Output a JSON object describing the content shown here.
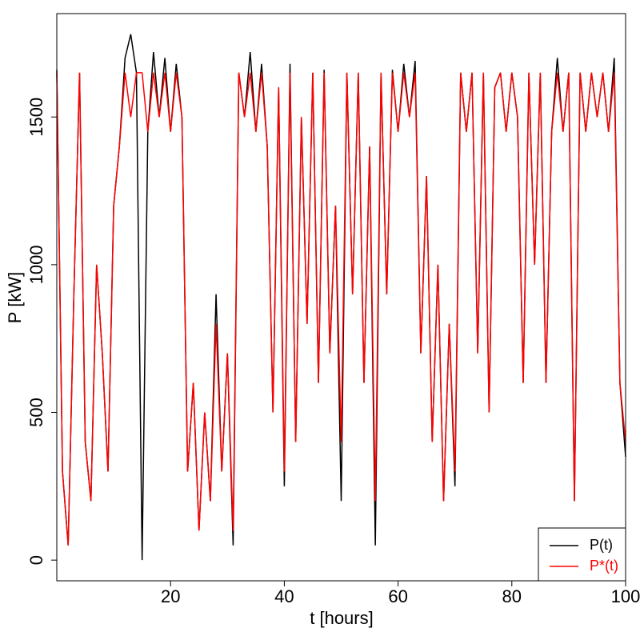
{
  "chart_data": {
    "type": "line",
    "x_label": "t [hours]",
    "y_label": "P [kW]",
    "x": [
      0,
      1,
      2,
      3,
      4,
      5,
      6,
      7,
      8,
      9,
      10,
      11,
      12,
      13,
      14,
      15,
      16,
      17,
      18,
      19,
      20,
      21,
      22,
      23,
      24,
      25,
      26,
      27,
      28,
      29,
      30,
      31,
      32,
      33,
      34,
      35,
      36,
      37,
      38,
      39,
      40,
      41,
      42,
      43,
      44,
      45,
      46,
      47,
      48,
      49,
      50,
      51,
      52,
      53,
      54,
      55,
      56,
      57,
      58,
      59,
      60,
      61,
      62,
      63,
      64,
      65,
      66,
      67,
      68,
      69,
      70,
      71,
      72,
      73,
      74,
      75,
      76,
      77,
      78,
      79,
      80,
      81,
      82,
      83,
      84,
      85,
      86,
      87,
      88,
      89,
      90,
      91,
      92,
      93,
      94,
      95,
      96,
      97,
      98,
      99,
      100
    ],
    "series": [
      {
        "name": "P(t)",
        "color": "#000000",
        "values": [
          1660,
          300,
          50,
          900,
          1650,
          400,
          200,
          1000,
          700,
          300,
          1200,
          1400,
          1700,
          1780,
          1650,
          0,
          1450,
          1720,
          1500,
          1700,
          1450,
          1680,
          1500,
          300,
          600,
          100,
          500,
          200,
          900,
          300,
          700,
          50,
          1650,
          1500,
          1720,
          1450,
          1680,
          1400,
          500,
          1600,
          250,
          1680,
          400,
          1500,
          800,
          1650,
          600,
          1660,
          700,
          1200,
          200,
          1650,
          900,
          1650,
          600,
          1400,
          50,
          1650,
          900,
          1660,
          1450,
          1680,
          1500,
          1690,
          700,
          1300,
          400,
          1000,
          200,
          800,
          250,
          1650,
          1450,
          1650,
          700,
          1650,
          500,
          1600,
          1650,
          1450,
          1650,
          1500,
          600,
          1650,
          1000,
          1650,
          600,
          1450,
          1700,
          1450,
          1650,
          200,
          1650,
          1450,
          1650,
          1500,
          1650,
          1450,
          1700,
          600,
          350
        ]
      },
      {
        "name": "P*(t)",
        "color": "#ff0000",
        "values": [
          1650,
          300,
          50,
          900,
          1650,
          400,
          200,
          1000,
          700,
          300,
          1200,
          1400,
          1650,
          1500,
          1650,
          1650,
          1450,
          1650,
          1500,
          1650,
          1450,
          1650,
          1500,
          300,
          600,
          100,
          500,
          200,
          800,
          300,
          700,
          100,
          1650,
          1500,
          1650,
          1450,
          1650,
          1400,
          500,
          1600,
          300,
          1650,
          400,
          1500,
          800,
          1650,
          600,
          1650,
          700,
          1200,
          400,
          1650,
          900,
          1650,
          600,
          1400,
          200,
          1650,
          900,
          1650,
          1450,
          1650,
          1500,
          1650,
          700,
          1300,
          400,
          1000,
          200,
          800,
          300,
          1650,
          1450,
          1650,
          700,
          1650,
          500,
          1600,
          1650,
          1450,
          1650,
          1500,
          600,
          1650,
          1000,
          1650,
          600,
          1450,
          1650,
          1450,
          1650,
          200,
          1650,
          1450,
          1650,
          1500,
          1650,
          1450,
          1650,
          600,
          400
        ]
      }
    ],
    "xlim": [
      0,
      100
    ],
    "ylim": [
      -70,
      1850
    ],
    "xticks": [
      20,
      40,
      60,
      80,
      100
    ],
    "yticks": [
      0,
      500,
      1000,
      1500
    ],
    "legend": "bottom right"
  }
}
